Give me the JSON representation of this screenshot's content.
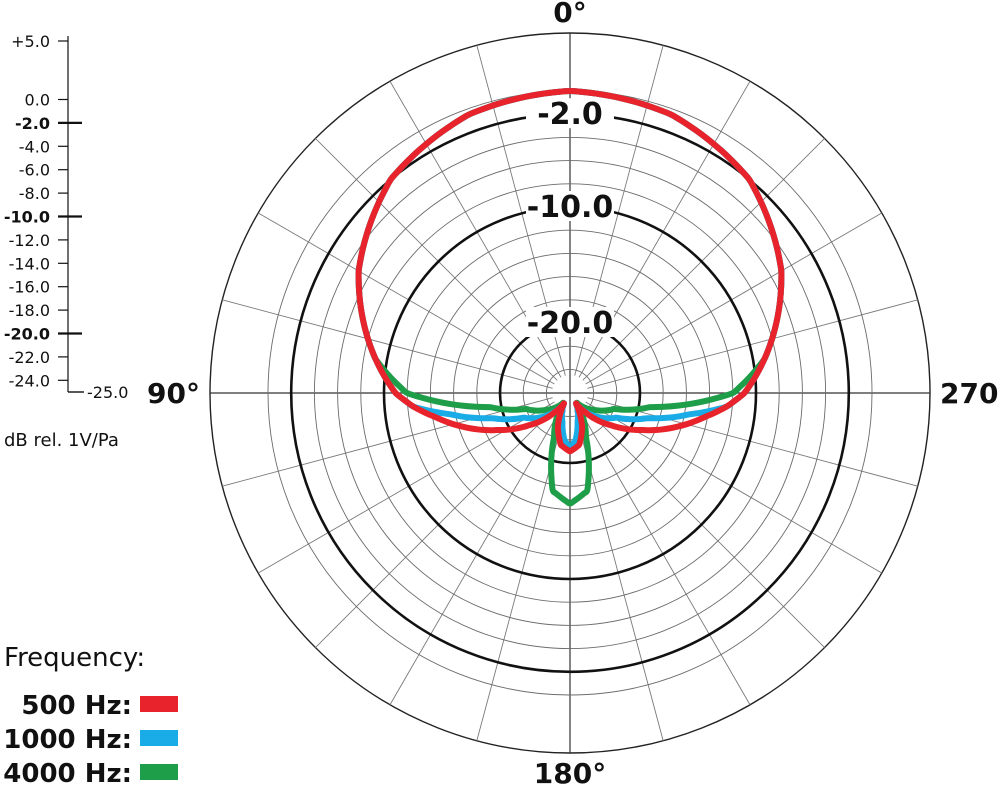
{
  "chart_data": {
    "type": "polar",
    "angle_labels": [
      {
        "text": "0",
        "deg": 0
      },
      {
        "text": "90",
        "deg": 90
      },
      {
        "text": "180",
        "deg": 180
      },
      {
        "text": "270",
        "deg": 270
      }
    ],
    "degree_symbol": "°",
    "ring_labels": [
      {
        "text": "-2.0",
        "db": -2
      },
      {
        "text": "-10.0",
        "db": -10
      },
      {
        "text": "-20.0",
        "db": -20
      }
    ],
    "r_range_db": [
      -25,
      0
    ],
    "grid_db": [
      -24,
      -22,
      -20,
      -18,
      -16,
      -14,
      -12,
      -10,
      -8,
      -6,
      -4,
      -2,
      0
    ],
    "major_rings_db": [
      -2,
      -10,
      -20
    ],
    "outer_ring_db": 5,
    "spoke_step_deg": 15,
    "scale": {
      "unit_label": "dB rel. 1V/Pa",
      "ticks": [
        {
          "label": "+5.0",
          "db": 5,
          "major": false
        },
        {
          "label": "0.0",
          "db": 0,
          "major": false
        },
        {
          "label": "-2.0",
          "db": -2,
          "major": true
        },
        {
          "label": "-4.0",
          "db": -4,
          "major": false
        },
        {
          "label": "-6.0",
          "db": -6,
          "major": false
        },
        {
          "label": "-8.0",
          "db": -8,
          "major": false
        },
        {
          "label": "-10.0",
          "db": -10,
          "major": true
        },
        {
          "label": "-12.0",
          "db": -12,
          "major": false
        },
        {
          "label": "-14.0",
          "db": -14,
          "major": false
        },
        {
          "label": "-16.0",
          "db": -16,
          "major": false
        },
        {
          "label": "-18.0",
          "db": -18,
          "major": false
        },
        {
          "label": "-20.0",
          "db": -20,
          "major": true
        },
        {
          "label": "-22.0",
          "db": -22,
          "major": false
        },
        {
          "label": "-24.0",
          "db": -24,
          "major": false
        },
        {
          "label": "-25.0",
          "db": -25,
          "major": false
        }
      ]
    },
    "series": [
      {
        "name": "4000 Hz",
        "color": "#1e9e48",
        "points": [
          [
            0,
            0
          ],
          [
            20,
            -0.5
          ],
          [
            40,
            -2
          ],
          [
            60,
            -5
          ],
          [
            80,
            -9
          ],
          [
            90,
            -12
          ],
          [
            95,
            -15.5
          ],
          [
            100,
            -19
          ],
          [
            110,
            -22
          ],
          [
            125,
            -23.5
          ],
          [
            145,
            -25
          ],
          [
            160,
            -22
          ],
          [
            170,
            -17.5
          ],
          [
            180,
            -16.5
          ],
          [
            190,
            -17.5
          ],
          [
            200,
            -22
          ],
          [
            215,
            -25
          ],
          [
            235,
            -23.5
          ],
          [
            250,
            -22
          ],
          [
            260,
            -19
          ],
          [
            265,
            -15.5
          ],
          [
            270,
            -12
          ],
          [
            280,
            -9
          ],
          [
            300,
            -5
          ],
          [
            320,
            -2
          ],
          [
            340,
            -0.5
          ],
          [
            360,
            0
          ]
        ]
      },
      {
        "name": "1000 Hz",
        "color": "#1aace6",
        "points": [
          [
            0,
            0
          ],
          [
            20,
            -0.5
          ],
          [
            40,
            -2
          ],
          [
            60,
            -5
          ],
          [
            80,
            -9
          ],
          [
            90,
            -11
          ],
          [
            95,
            -12.5
          ],
          [
            100,
            -15.5
          ],
          [
            108,
            -19
          ],
          [
            118,
            -21.5
          ],
          [
            132,
            -23
          ],
          [
            150,
            -25
          ],
          [
            165,
            -23.5
          ],
          [
            173,
            -22
          ],
          [
            180,
            -21.3
          ],
          [
            187,
            -22
          ],
          [
            195,
            -23.5
          ],
          [
            210,
            -25
          ],
          [
            228,
            -23
          ],
          [
            242,
            -21.5
          ],
          [
            252,
            -19
          ],
          [
            260,
            -15.5
          ],
          [
            265,
            -12.5
          ],
          [
            270,
            -11
          ],
          [
            280,
            -9
          ],
          [
            300,
            -5
          ],
          [
            320,
            -2
          ],
          [
            340,
            -0.5
          ],
          [
            360,
            0
          ]
        ]
      },
      {
        "name": "500 Hz",
        "color": "#e8232b",
        "points": [
          [
            0,
            0
          ],
          [
            20,
            -0.5
          ],
          [
            40,
            -2
          ],
          [
            60,
            -5
          ],
          [
            80,
            -9
          ],
          [
            90,
            -11
          ],
          [
            95,
            -12.5
          ],
          [
            100,
            -14.2
          ],
          [
            108,
            -16.5
          ],
          [
            117,
            -19
          ],
          [
            128,
            -21.5
          ],
          [
            142,
            -24
          ],
          [
            150,
            -25
          ],
          [
            160,
            -23
          ],
          [
            170,
            -21.5
          ],
          [
            180,
            -21
          ],
          [
            190,
            -21.5
          ],
          [
            200,
            -23
          ],
          [
            210,
            -25
          ],
          [
            218,
            -24
          ],
          [
            232,
            -21.5
          ],
          [
            243,
            -19
          ],
          [
            252,
            -16.5
          ],
          [
            260,
            -14.2
          ],
          [
            265,
            -12.5
          ],
          [
            270,
            -11
          ],
          [
            280,
            -9
          ],
          [
            300,
            -5
          ],
          [
            320,
            -2
          ],
          [
            340,
            -0.5
          ],
          [
            360,
            0
          ]
        ]
      }
    ],
    "legend": {
      "title": "Frequency:",
      "position": "bottom-left"
    }
  }
}
